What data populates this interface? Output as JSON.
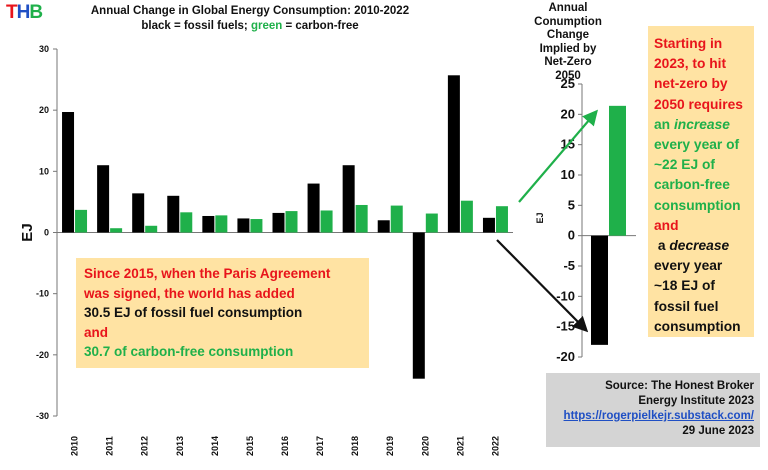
{
  "logo": {
    "letters": [
      "T",
      "H",
      "B"
    ],
    "colors": [
      "#e8141b",
      "#1f4fc4",
      "#1fb04a"
    ]
  },
  "colors": {
    "fossil": "#000000",
    "carbon_free": "#1fb04a",
    "note_bg": "#ffe3a3",
    "source_bg": "#d4d4d4",
    "red": "#e8141b"
  },
  "main_title": {
    "line1": "Annual Change in Global Energy Consumption: 2010-2022",
    "line2_a": "black = fossil fuels; ",
    "line2_b": "green",
    "line2_c": " = carbon-free"
  },
  "right_title": {
    "lines": [
      "Annual",
      "Conumption",
      "Change",
      "Implied by",
      "Net-Zero",
      "2050"
    ]
  },
  "left_note": {
    "line1": "Since 2015, when the Paris Agreement",
    "line2": "was signed, the world has added",
    "line3": "30.5 EJ of fossil fuel consumption",
    "line4": "and",
    "line5": "30.7 of carbon-free consumption"
  },
  "right_note": {
    "red_lines": [
      "Starting in",
      "2023, to hit",
      "net-zero by",
      "2050 requires"
    ],
    "an": "an ",
    "increase": "increase",
    "green_lines": [
      "every year of",
      "~22 EJ of",
      "carbon-free",
      "consumption"
    ],
    "and": "and",
    "a": " a ",
    "decrease": "decrease",
    "black_lines": [
      "every year",
      "~18 EJ of",
      "fossil fuel",
      "consumption"
    ]
  },
  "source": {
    "line1": "Source: The Honest Broker",
    "line2": "Energy Institute 2023",
    "link": "https://rogerpielkejr.substack.com/",
    "date": "29 June 2023"
  },
  "chart_data": [
    {
      "type": "bar",
      "title": "Annual Change in Global Energy Consumption: 2010-2022",
      "subtitle": "black = fossil fuels; green = carbon-free",
      "xlabel": "",
      "ylabel": "EJ",
      "ylim": [
        -30,
        30
      ],
      "yticks": [
        30,
        20,
        10,
        0,
        -10,
        -20,
        -30
      ],
      "grid": false,
      "categories": [
        "2010",
        "2011",
        "2012",
        "2013",
        "2014",
        "2015",
        "2016",
        "2017",
        "2018",
        "2019",
        "2020",
        "2021",
        "2022"
      ],
      "series": [
        {
          "name": "fossil fuels",
          "color": "#000000",
          "values": [
            19.7,
            11.0,
            6.4,
            6.0,
            2.7,
            2.3,
            3.2,
            8.0,
            11.0,
            2.0,
            -23.9,
            25.7,
            2.4
          ]
        },
        {
          "name": "carbon-free",
          "color": "#1fb04a",
          "values": [
            3.7,
            0.7,
            1.1,
            3.3,
            2.8,
            2.2,
            3.5,
            3.6,
            4.5,
            4.4,
            3.1,
            5.2,
            4.3
          ]
        }
      ]
    },
    {
      "type": "bar",
      "title": "Annual Conumption Change Implied by Net-Zero 2050",
      "xlabel": "",
      "ylabel": "EJ",
      "ylim": [
        -20,
        25
      ],
      "yticks": [
        25,
        20,
        15,
        10,
        5,
        0,
        -5,
        -10,
        -15,
        -20
      ],
      "grid": false,
      "series": [
        {
          "name": "fossil fuels",
          "color": "#000000",
          "values": [
            -18
          ]
        },
        {
          "name": "carbon-free",
          "color": "#1fb04a",
          "values": [
            21.4
          ]
        }
      ]
    }
  ]
}
